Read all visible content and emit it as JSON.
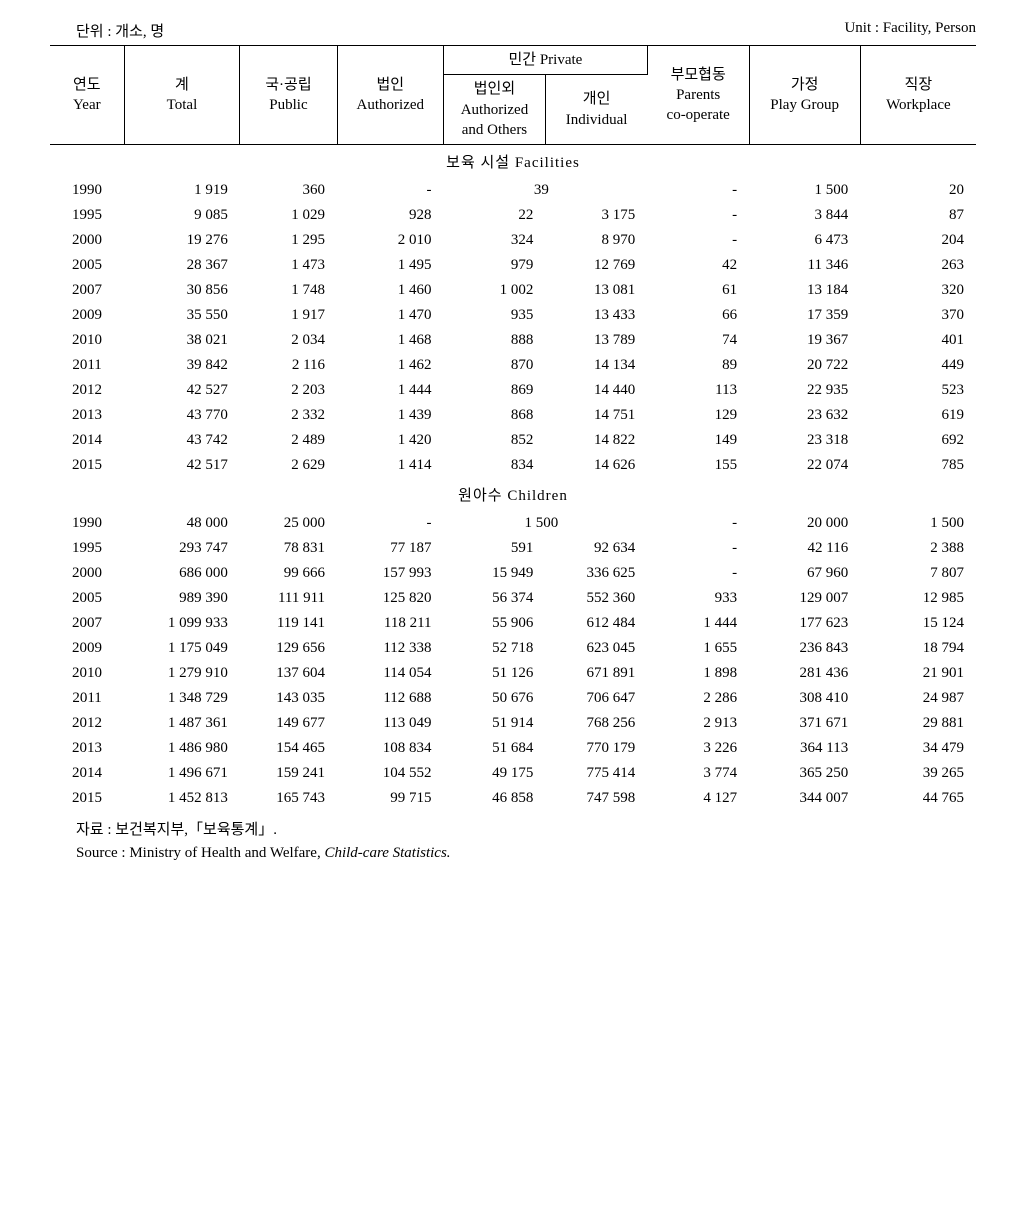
{
  "unitLeft": "단위 : 개소, 명",
  "unitRight": "Unit : Facility, Person",
  "headers": {
    "year": "연도\nYear",
    "total": "계\nTotal",
    "public": "국·공립\nPublic",
    "authorized": "법인\nAuthorized",
    "privateGroup": "민간 Private",
    "authorizedOthers": "법인외\nAuthorized\nand Others",
    "individual": "개인\nIndividual",
    "parents": "부모협동\nParents\nco-operate",
    "playGroup": "가정\nPlay Group",
    "workplace": "직장\nWorkplace"
  },
  "sections": {
    "facilities": "보육 시설    Facilities",
    "children": "원아수    Children"
  },
  "facilities": [
    {
      "year": "1990",
      "total": "1 919",
      "public": "360",
      "authorized": "-",
      "authOther": null,
      "individual": null,
      "privateMerged": "39",
      "parents": "-",
      "playGroup": "1 500",
      "workplace": "20"
    },
    {
      "year": "1995",
      "total": "9 085",
      "public": "1 029",
      "authorized": "928",
      "authOther": "22",
      "individual": "3 175",
      "parents": "-",
      "playGroup": "3 844",
      "workplace": "87"
    },
    {
      "year": "2000",
      "total": "19 276",
      "public": "1 295",
      "authorized": "2 010",
      "authOther": "324",
      "individual": "8 970",
      "parents": "-",
      "playGroup": "6 473",
      "workplace": "204"
    },
    {
      "year": "2005",
      "total": "28 367",
      "public": "1 473",
      "authorized": "1 495",
      "authOther": "979",
      "individual": "12 769",
      "parents": "42",
      "playGroup": "11 346",
      "workplace": "263"
    },
    {
      "year": "2007",
      "total": "30 856",
      "public": "1 748",
      "authorized": "1 460",
      "authOther": "1 002",
      "individual": "13 081",
      "parents": "61",
      "playGroup": "13 184",
      "workplace": "320"
    },
    {
      "year": "2009",
      "total": "35 550",
      "public": "1 917",
      "authorized": "1 470",
      "authOther": "935",
      "individual": "13 433",
      "parents": "66",
      "playGroup": "17 359",
      "workplace": "370"
    },
    {
      "year": "2010",
      "total": "38 021",
      "public": "2 034",
      "authorized": "1 468",
      "authOther": "888",
      "individual": "13 789",
      "parents": "74",
      "playGroup": "19 367",
      "workplace": "401"
    },
    {
      "year": "2011",
      "total": "39 842",
      "public": "2 116",
      "authorized": "1 462",
      "authOther": "870",
      "individual": "14 134",
      "parents": "89",
      "playGroup": "20 722",
      "workplace": "449"
    },
    {
      "year": "2012",
      "total": "42 527",
      "public": "2 203",
      "authorized": "1 444",
      "authOther": "869",
      "individual": "14 440",
      "parents": "113",
      "playGroup": "22 935",
      "workplace": "523"
    },
    {
      "year": "2013",
      "total": "43 770",
      "public": "2 332",
      "authorized": "1 439",
      "authOther": "868",
      "individual": "14 751",
      "parents": "129",
      "playGroup": "23 632",
      "workplace": "619"
    },
    {
      "year": "2014",
      "total": "43 742",
      "public": "2 489",
      "authorized": "1 420",
      "authOther": "852",
      "individual": "14 822",
      "parents": "149",
      "playGroup": "23 318",
      "workplace": "692"
    },
    {
      "year": "2015",
      "total": "42 517",
      "public": "2 629",
      "authorized": "1 414",
      "authOther": "834",
      "individual": "14 626",
      "parents": "155",
      "playGroup": "22 074",
      "workplace": "785"
    }
  ],
  "children": [
    {
      "year": "1990",
      "total": "48 000",
      "public": "25 000",
      "authorized": "-",
      "authOther": null,
      "individual": null,
      "privateMerged": "1 500",
      "parents": "-",
      "playGroup": "20 000",
      "workplace": "1 500"
    },
    {
      "year": "1995",
      "total": "293 747",
      "public": "78 831",
      "authorized": "77 187",
      "authOther": "591",
      "individual": "92 634",
      "parents": "-",
      "playGroup": "42 116",
      "workplace": "2 388"
    },
    {
      "year": "2000",
      "total": "686 000",
      "public": "99 666",
      "authorized": "157 993",
      "authOther": "15 949",
      "individual": "336 625",
      "parents": "-",
      "playGroup": "67 960",
      "workplace": "7 807"
    },
    {
      "year": "2005",
      "total": "989 390",
      "public": "111 911",
      "authorized": "125 820",
      "authOther": "56 374",
      "individual": "552 360",
      "parents": "933",
      "playGroup": "129 007",
      "workplace": "12 985"
    },
    {
      "year": "2007",
      "total": "1 099 933",
      "public": "119 141",
      "authorized": "118 211",
      "authOther": "55 906",
      "individual": "612 484",
      "parents": "1 444",
      "playGroup": "177 623",
      "workplace": "15 124"
    },
    {
      "year": "2009",
      "total": "1 175 049",
      "public": "129 656",
      "authorized": "112 338",
      "authOther": "52 718",
      "individual": "623 045",
      "parents": "1 655",
      "playGroup": "236 843",
      "workplace": "18 794"
    },
    {
      "year": "2010",
      "total": "1 279 910",
      "public": "137 604",
      "authorized": "114 054",
      "authOther": "51 126",
      "individual": "671 891",
      "parents": "1 898",
      "playGroup": "281 436",
      "workplace": "21 901"
    },
    {
      "year": "2011",
      "total": "1 348 729",
      "public": "143 035",
      "authorized": "112 688",
      "authOther": "50 676",
      "individual": "706 647",
      "parents": "2 286",
      "playGroup": "308 410",
      "workplace": "24 987"
    },
    {
      "year": "2012",
      "total": "1 487 361",
      "public": "149 677",
      "authorized": "113 049",
      "authOther": "51 914",
      "individual": "768 256",
      "parents": "2 913",
      "playGroup": "371 671",
      "workplace": "29 881"
    },
    {
      "year": "2013",
      "total": "1 486 980",
      "public": "154 465",
      "authorized": "108 834",
      "authOther": "51 684",
      "individual": "770 179",
      "parents": "3 226",
      "playGroup": "364 113",
      "workplace": "34 479"
    },
    {
      "year": "2014",
      "total": "1 496 671",
      "public": "159 241",
      "authorized": "104 552",
      "authOther": "49 175",
      "individual": "775 414",
      "parents": "3 774",
      "playGroup": "365 250",
      "workplace": "39 265"
    },
    {
      "year": "2015",
      "total": "1 452 813",
      "public": "165 743",
      "authorized": "99 715",
      "authOther": "46 858",
      "individual": "747 598",
      "parents": "4 127",
      "playGroup": "344 007",
      "workplace": "44 765"
    }
  ],
  "footer": {
    "sourceKr": "자료    :  보건복지부,「보육통계」.",
    "sourceEnPrefix": "Source :  Ministry of Health and Welfare, ",
    "sourceEnItalic": "Child-care Statistics."
  }
}
